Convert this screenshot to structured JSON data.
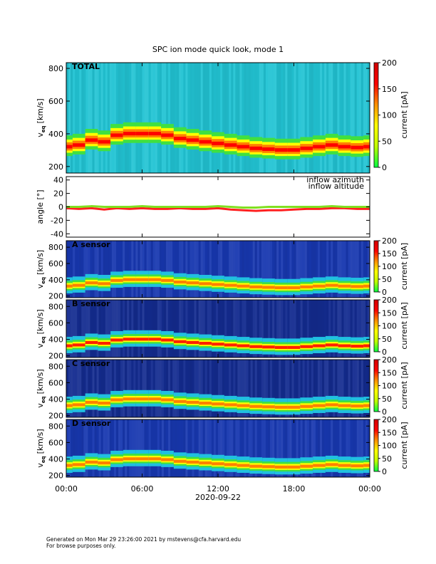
{
  "chart_data": [
    {
      "type": "heatmap",
      "title": "SPC ion mode quick look, mode 1",
      "panel_label": "TOTAL",
      "ylabel": "v",
      "ylabel_sub": "eq",
      "ylabel_unit": "[km/s]",
      "xlim": [
        0,
        24
      ],
      "ylim": [
        160,
        835
      ],
      "yticks": [
        200,
        400,
        600,
        800
      ],
      "clim": [
        0,
        200
      ],
      "cticks": [
        0,
        50,
        100,
        150,
        200
      ],
      "clabel": "current [pA]",
      "background": "#22c4d4",
      "band_colors": [
        "#40e040",
        "#ffff00",
        "#ff8000",
        "#ff0000"
      ],
      "peak_velocity": [
        320,
        330,
        360,
        350,
        390,
        400,
        400,
        400,
        390,
        370,
        360,
        350,
        340,
        330,
        320,
        310,
        305,
        300,
        300,
        310,
        320,
        330,
        320,
        315,
        320
      ]
    },
    {
      "type": "line",
      "ylabel": "angle [°]",
      "xlim": [
        0,
        24
      ],
      "ylim": [
        -45,
        45
      ],
      "yticks": [
        -40,
        -20,
        0,
        20,
        40
      ],
      "series": [
        {
          "name": "inflow azimuth",
          "color": "#ff2020",
          "values": [
            -2,
            -3,
            -2,
            -4,
            -2,
            -3,
            -2,
            -3,
            -3,
            -2,
            -3,
            -3,
            -2,
            -4,
            -5,
            -6,
            -5,
            -5,
            -4,
            -3,
            -3,
            -2,
            -2,
            -3,
            -3
          ]
        },
        {
          "name": "inflow altitude",
          "color": "#80e020",
          "values": [
            0,
            0,
            1,
            0,
            0,
            0,
            1,
            0,
            0,
            0,
            0,
            0,
            1,
            0,
            -1,
            -1,
            0,
            0,
            0,
            0,
            0,
            1,
            0,
            0,
            0
          ]
        }
      ]
    },
    {
      "type": "heatmap",
      "panel_label": "A sensor",
      "ylabel": "v",
      "ylabel_sub": "eq",
      "ylabel_unit": "[km/s]",
      "xlim": [
        0,
        24
      ],
      "ylim": [
        180,
        880
      ],
      "yticks": [
        200,
        400,
        600,
        800
      ],
      "clim": [
        0,
        200
      ],
      "cticks": [
        0,
        50,
        100,
        150,
        200
      ],
      "clabel": "current [pA]",
      "background": "#1838b0",
      "band_colors": [
        "#20c0e0",
        "#40e040",
        "#ffff00",
        "#ff8000"
      ],
      "peak_velocity": [
        320,
        330,
        360,
        350,
        390,
        400,
        400,
        400,
        390,
        370,
        360,
        350,
        340,
        330,
        320,
        310,
        305,
        300,
        300,
        310,
        320,
        330,
        320,
        315,
        320
      ]
    },
    {
      "type": "heatmap",
      "panel_label": "B sensor",
      "ylabel": "v",
      "ylabel_sub": "eq",
      "ylabel_unit": "[km/s]",
      "xlim": [
        0,
        24
      ],
      "ylim": [
        180,
        880
      ],
      "yticks": [
        200,
        400,
        600,
        800
      ],
      "clim": [
        0,
        200
      ],
      "cticks": [
        0,
        50,
        100,
        150,
        200
      ],
      "clabel": "current [pA]",
      "background": "#142c90",
      "band_colors": [
        "#20c0e0",
        "#40e040",
        "#ffff00",
        "#ff2000"
      ],
      "peak_velocity": [
        320,
        330,
        360,
        350,
        390,
        400,
        400,
        400,
        390,
        370,
        360,
        350,
        340,
        330,
        320,
        310,
        305,
        300,
        300,
        310,
        320,
        330,
        320,
        315,
        320
      ]
    },
    {
      "type": "heatmap",
      "panel_label": "C sensor",
      "ylabel": "v",
      "ylabel_sub": "eq",
      "ylabel_unit": "[km/s]",
      "xlim": [
        0,
        24
      ],
      "ylim": [
        180,
        880
      ],
      "yticks": [
        200,
        400,
        600,
        800
      ],
      "clim": [
        0,
        200
      ],
      "cticks": [
        0,
        50,
        100,
        150,
        200
      ],
      "clabel": "current [pA]",
      "background": "#142c90",
      "band_colors": [
        "#20c0e0",
        "#40e040",
        "#ffff00",
        "#ff8000"
      ],
      "peak_velocity": [
        320,
        330,
        360,
        350,
        390,
        400,
        400,
        400,
        390,
        370,
        360,
        350,
        340,
        330,
        320,
        310,
        305,
        300,
        300,
        310,
        320,
        330,
        320,
        315,
        320
      ]
    },
    {
      "type": "heatmap",
      "panel_label": "D sensor",
      "ylabel": "v",
      "ylabel_sub": "eq",
      "ylabel_unit": "[km/s]",
      "xlim": [
        0,
        24
      ],
      "ylim": [
        180,
        880
      ],
      "yticks": [
        200,
        400,
        600,
        800
      ],
      "clim": [
        0,
        200
      ],
      "cticks": [
        0,
        50,
        100,
        150,
        200
      ],
      "clabel": "current [pA]",
      "background": "#1838b0",
      "band_colors": [
        "#20c0e0",
        "#40e040",
        "#ffff00",
        "#ff8000"
      ],
      "peak_velocity": [
        320,
        330,
        360,
        350,
        390,
        400,
        400,
        400,
        390,
        370,
        360,
        350,
        340,
        330,
        320,
        310,
        305,
        300,
        300,
        310,
        320,
        330,
        320,
        315,
        320
      ],
      "xticks": [
        {
          "value": 0,
          "label": "00:00"
        },
        {
          "value": 6,
          "label": "06:00"
        },
        {
          "value": 12,
          "label": "12:00"
        },
        {
          "value": 18,
          "label": "18:00"
        },
        {
          "value": 24,
          "label": "00:00"
        }
      ],
      "xlabel": "2020-09-22"
    }
  ],
  "footer": [
    "Generated on Mon Mar 29 23:26:00 2021 by mstevens@cfa.harvard.edu",
    "For browse purposes only."
  ]
}
